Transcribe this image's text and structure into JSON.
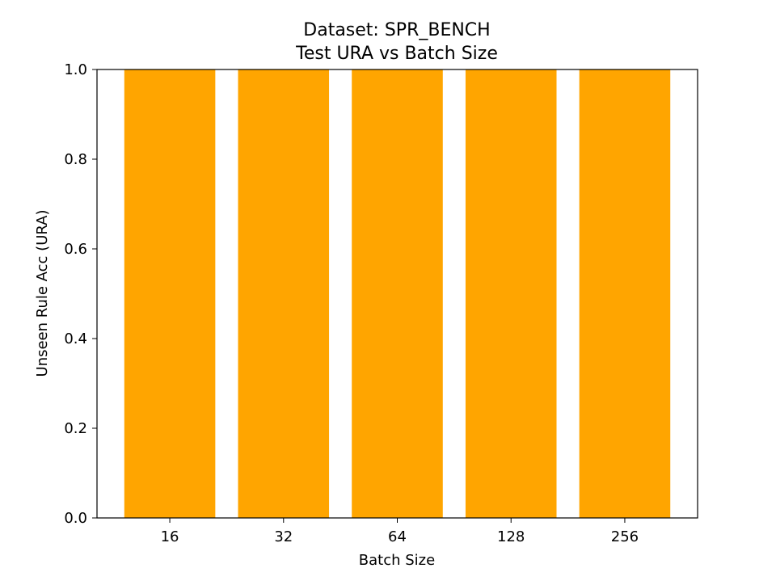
{
  "chart_data": {
    "type": "bar",
    "title_line1": "Dataset: SPR_BENCH",
    "title_line2": "Test URA vs Batch Size",
    "xlabel": "Batch Size",
    "ylabel": "Unseen Rule Acc (URA)",
    "categories": [
      "16",
      "32",
      "64",
      "128",
      "256"
    ],
    "values": [
      1.0,
      1.0,
      1.0,
      1.0,
      1.0
    ],
    "ylim": [
      0.0,
      1.0
    ],
    "yticks": [
      0.0,
      0.2,
      0.4,
      0.6,
      0.8,
      1.0
    ],
    "ytick_labels": [
      "0.0",
      "0.2",
      "0.4",
      "0.6",
      "0.8",
      "1.0"
    ],
    "bar_color": "#ffa500",
    "grid": false,
    "legend": "none"
  }
}
